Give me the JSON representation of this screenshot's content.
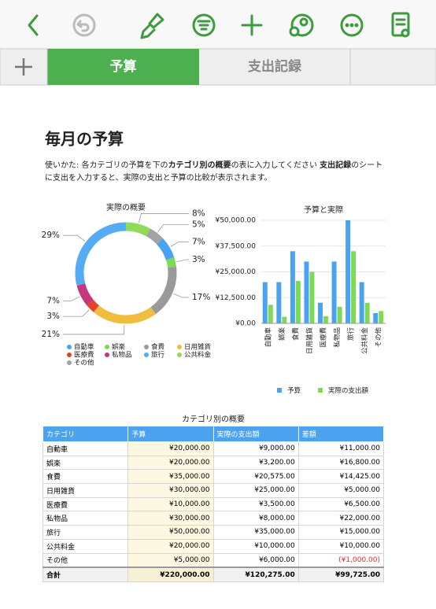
{
  "tabs": [
    "予算",
    "支出記録"
  ],
  "header": {
    "title": "毎月の予算"
  },
  "intro": [
    {
      "text": "使いかた: 各カテゴリの予算を下の",
      "bold": false
    },
    {
      "text": "カテゴリ別の概要",
      "bold": true
    },
    {
      "text": "の表に入力してください ",
      "bold": false
    },
    {
      "text": "支出記録",
      "bold": true
    },
    {
      "text": "のシートに支出を入力すると、実際の支出と予算の比較が表示されます。",
      "bold": false
    }
  ],
  "chart_data": [
    {
      "type": "pie",
      "title": "実際の概要",
      "categories": [
        "自動車",
        "娯楽",
        "食費",
        "日用雑貨",
        "医療費",
        "私物品",
        "旅行",
        "公共料金",
        "その他"
      ],
      "values": [
        7,
        3,
        17,
        21,
        3,
        7,
        29,
        8,
        5
      ],
      "value_labels": [
        "7%",
        "3%",
        "17%",
        "21%",
        "3%",
        "7%",
        "29%",
        "8%",
        "5%"
      ],
      "colors": [
        "#4aa3f0",
        "#7ed957",
        "#9a9a9a",
        "#f0bd3e",
        "#e5432e",
        "#c8367a",
        "#55acf2",
        "#8fdc5a",
        "#a3a3a3"
      ]
    },
    {
      "type": "bar",
      "title": "予算と実際",
      "categories": [
        "自動車",
        "娯楽",
        "食費",
        "日用雑貨",
        "医療費",
        "私物品",
        "旅行",
        "公共料金",
        "その他"
      ],
      "series": [
        {
          "name": "予算",
          "color": "#4aa3f0",
          "values": [
            20000,
            20000,
            35000,
            30000,
            10000,
            30000,
            50000,
            20000,
            5000
          ]
        },
        {
          "name": "実際の支出額",
          "color": "#7ed957",
          "values": [
            9000,
            3200,
            20575,
            25000,
            3500,
            8000,
            35000,
            10000,
            6000
          ]
        }
      ],
      "ylim": [
        0,
        50000
      ],
      "yticks": [
        {
          "value": 0,
          "label": "¥0.00"
        },
        {
          "value": 12500,
          "label": "¥12,500.00"
        },
        {
          "value": 25000,
          "label": "¥25,000.00"
        },
        {
          "value": 37500,
          "label": "¥37,500.00"
        },
        {
          "value": 50000,
          "label": "¥50,000.00"
        }
      ],
      "grid": true
    }
  ],
  "table": {
    "title": "カテゴリ別の概要",
    "columns": [
      "カテゴリ",
      "予算",
      "実際の支出額",
      "差額"
    ],
    "rows": [
      [
        "自動車",
        "¥20,000.00",
        "¥9,000.00",
        "¥11,000.00"
      ],
      [
        "娯楽",
        "¥20,000.00",
        "¥3,200.00",
        "¥16,800.00"
      ],
      [
        "食費",
        "¥35,000.00",
        "¥20,575.00",
        "¥14,425.00"
      ],
      [
        "日用雑貨",
        "¥30,000.00",
        "¥25,000.00",
        "¥5,000.00"
      ],
      [
        "医療費",
        "¥10,000.00",
        "¥3,500.00",
        "¥6,500.00"
      ],
      [
        "私物品",
        "¥30,000.00",
        "¥8,000.00",
        "¥22,000.00"
      ],
      [
        "旅行",
        "¥50,000.00",
        "¥35,000.00",
        "¥15,000.00"
      ],
      [
        "公共料金",
        "¥20,000.00",
        "¥10,000.00",
        "¥10,000.00"
      ],
      [
        "その他",
        "¥5,000.00",
        "¥6,000.00",
        "(¥1,000.00)"
      ]
    ],
    "footer": [
      "合計",
      "¥220,000.00",
      "¥120,275.00",
      "¥99,725.00"
    ]
  }
}
